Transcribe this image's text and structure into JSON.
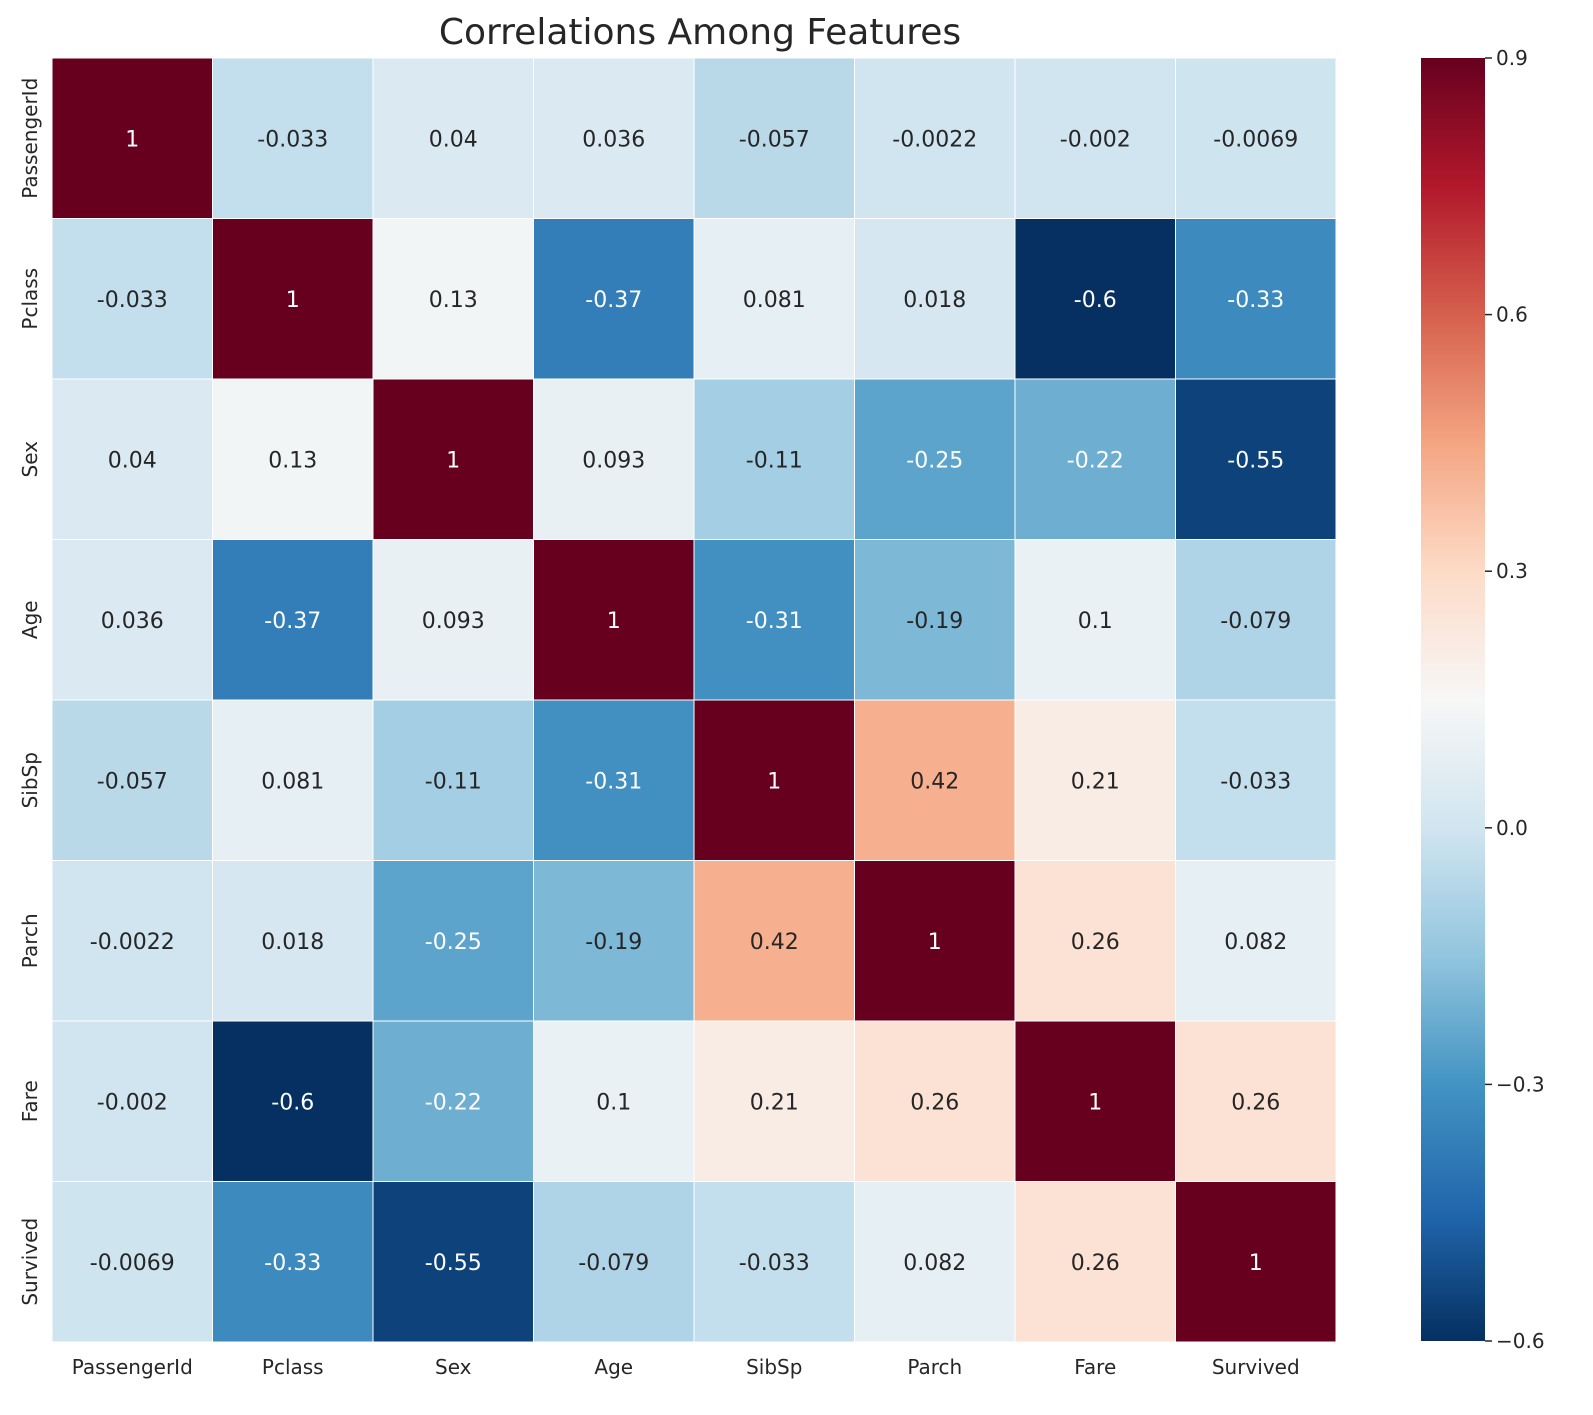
{
  "chart_data": {
    "type": "heatmap",
    "title": "Correlations Among Features",
    "xlabel": "",
    "ylabel": "",
    "row_labels": [
      "PassengerId",
      "Pclass",
      "Sex",
      "Age",
      "SibSp",
      "Parch",
      "Fare",
      "Survived"
    ],
    "col_labels": [
      "PassengerId",
      "Pclass",
      "Sex",
      "Age",
      "SibSp",
      "Parch",
      "Fare",
      "Survived"
    ],
    "values": [
      [
        1,
        -0.033,
        0.04,
        0.036,
        -0.057,
        -0.0022,
        -0.002,
        -0.0069
      ],
      [
        -0.033,
        1,
        0.13,
        -0.37,
        0.081,
        0.018,
        -0.6,
        -0.33
      ],
      [
        0.04,
        0.13,
        1,
        0.093,
        -0.11,
        -0.25,
        -0.22,
        -0.55
      ],
      [
        0.036,
        -0.37,
        0.093,
        1,
        -0.31,
        -0.19,
        0.1,
        -0.079
      ],
      [
        -0.057,
        0.081,
        -0.11,
        -0.31,
        1,
        0.42,
        0.21,
        -0.033
      ],
      [
        -0.0022,
        0.018,
        -0.25,
        -0.19,
        0.42,
        1,
        0.26,
        0.082
      ],
      [
        -0.002,
        -0.6,
        -0.22,
        0.1,
        0.21,
        0.26,
        1,
        0.26
      ],
      [
        -0.0069,
        -0.33,
        -0.55,
        -0.079,
        -0.033,
        0.082,
        0.26,
        1
      ]
    ],
    "colorbar": {
      "range": [
        -0.6,
        0.9
      ],
      "ticks": [
        0.9,
        0.6,
        0.3,
        0.0,
        -0.3,
        -0.6
      ],
      "tick_labels": [
        "0.9",
        "0.6",
        "0.3",
        "0.0",
        "−0.3",
        "−0.6"
      ]
    },
    "colormap": "RdBu_r",
    "annotations": true,
    "grid": false,
    "legend": "colorbar-right"
  }
}
